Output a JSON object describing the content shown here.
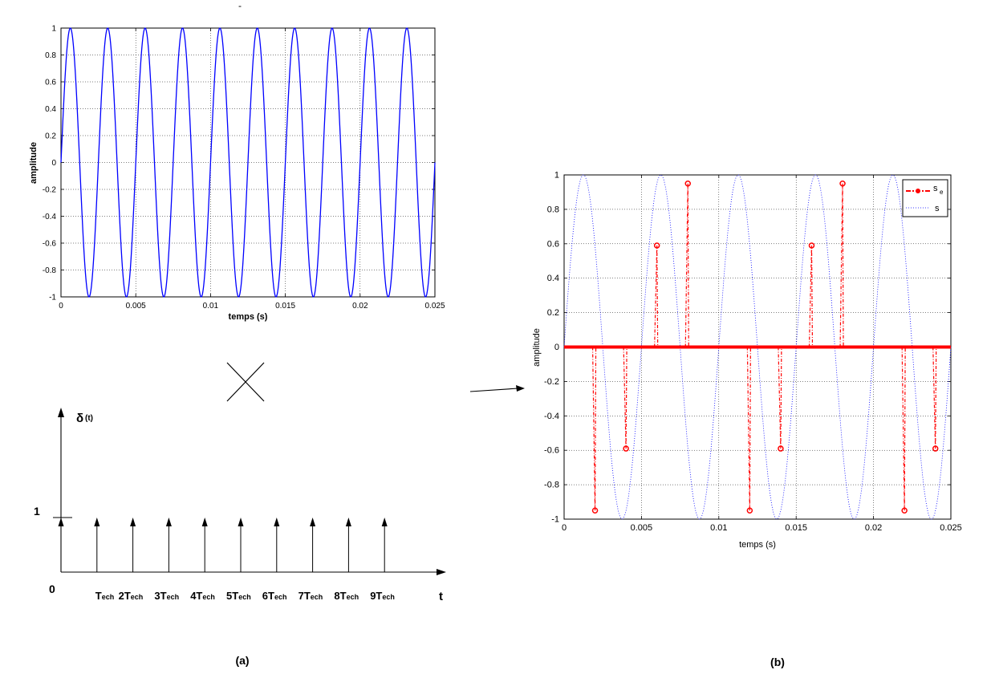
{
  "chart_data": [
    {
      "type": "line",
      "panel": "top-left",
      "title": "",
      "xlabel": "temps (s)",
      "ylabel": "amplitude",
      "xlim": [
        0,
        0.025
      ],
      "ylim": [
        -1,
        1
      ],
      "xticks": [
        0,
        0.005,
        0.01,
        0.015,
        0.02,
        0.025
      ],
      "xtick_labels": [
        "0",
        "0.005",
        "0.01",
        "0.015",
        "0.02",
        "0.025"
      ],
      "yticks": [
        -1,
        -0.8,
        -0.6,
        -0.4,
        -0.2,
        0,
        0.2,
        0.4,
        0.6,
        0.8,
        1
      ],
      "ytick_labels": [
        "-1",
        "-0.8",
        "-0.6",
        "-0.4",
        "-0.2",
        "0",
        "0.2",
        "0.4",
        "0.6",
        "0.8",
        "1"
      ],
      "grid": true,
      "series": [
        {
          "function": "sin(2*pi*f*t)",
          "frequency_hz": 400,
          "amplitude": 1,
          "color": "#0000ff"
        }
      ]
    },
    {
      "type": "line",
      "panel": "right",
      "title": "",
      "xlabel": "temps (s)",
      "ylabel": "amplitude",
      "xlim": [
        0,
        0.025
      ],
      "ylim": [
        -1,
        1
      ],
      "xticks": [
        0,
        0.005,
        0.01,
        0.015,
        0.02,
        0.025
      ],
      "xtick_labels": [
        "0",
        "0.005",
        "0.01",
        "0.015",
        "0.02",
        "0.025"
      ],
      "yticks": [
        -1,
        -0.8,
        -0.6,
        -0.4,
        -0.2,
        0,
        0.2,
        0.4,
        0.6,
        0.8,
        1
      ],
      "ytick_labels": [
        "-1",
        "-0.8",
        "-0.6",
        "-0.4",
        "-0.2",
        "0",
        "0.2",
        "0.4",
        "0.6",
        "0.8",
        "1"
      ],
      "grid": true,
      "legend_position": "top-right",
      "series": [
        {
          "name": "s",
          "name_subscript": "e",
          "style": "dash-dot with circle markers",
          "color": "#ff0000",
          "samples": [
            {
              "x": 0.002,
              "y": -0.95
            },
            {
              "x": 0.004,
              "y": -0.59
            },
            {
              "x": 0.006,
              "y": 0.59
            },
            {
              "x": 0.008,
              "y": 0.95
            },
            {
              "x": 0.012,
              "y": -0.95
            },
            {
              "x": 0.014,
              "y": -0.59
            },
            {
              "x": 0.016,
              "y": 0.59
            },
            {
              "x": 0.018,
              "y": 0.95
            },
            {
              "x": 0.022,
              "y": -0.95
            },
            {
              "x": 0.024,
              "y": -0.59
            }
          ],
          "baseline": 0
        },
        {
          "name": "s",
          "style": "dotted",
          "color": "#0000ff",
          "function": "sin(2*pi*f*t)",
          "frequency_hz": 200,
          "amplitude": 1
        }
      ]
    }
  ],
  "comb": {
    "ylabel_symbol": "δ",
    "ylabel_arg": "(t)",
    "one_label": "1",
    "zero_label": "0",
    "t_label": "t",
    "impulse_count": 10,
    "labels": [
      {
        "n": "",
        "sub": "ech"
      },
      {
        "n": "2",
        "sub": "ech"
      },
      {
        "n": "3",
        "sub": "ech"
      },
      {
        "n": "4",
        "sub": "ech"
      },
      {
        "n": "5",
        "sub": "ech"
      },
      {
        "n": "6",
        "sub": "ech"
      },
      {
        "n": "7",
        "sub": "ech"
      },
      {
        "n": "8",
        "sub": "ech"
      },
      {
        "n": "9",
        "sub": "ech"
      }
    ],
    "label_letter": "T"
  },
  "panel_labels": {
    "a": "(a)",
    "b": "(b)"
  },
  "stray_mark": "-"
}
